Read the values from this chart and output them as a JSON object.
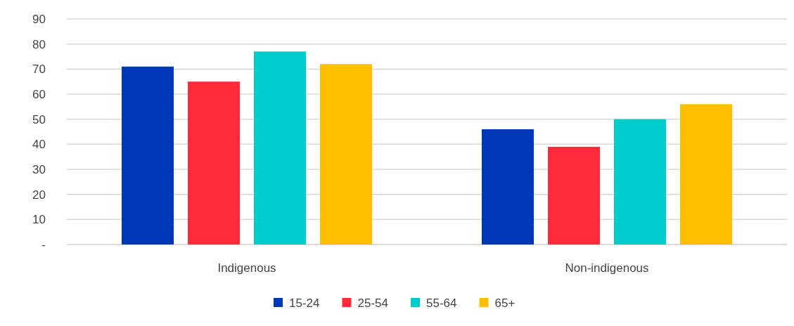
{
  "chart_data": {
    "type": "bar",
    "categories": [
      "Indigenous",
      "Non-indigenous"
    ],
    "series": [
      {
        "name": "15-24",
        "color": "#0038b8",
        "values": [
          71,
          46
        ]
      },
      {
        "name": "25-54",
        "color": "#ff2a3a",
        "values": [
          65,
          39
        ]
      },
      {
        "name": "55-64",
        "color": "#00cccc",
        "values": [
          77,
          50
        ]
      },
      {
        "name": "65+",
        "color": "#ffbf00",
        "values": [
          72,
          56
        ]
      }
    ],
    "ylim": [
      0,
      90
    ],
    "yticks": [
      {
        "value": 0,
        "label": "-"
      },
      10,
      20,
      30,
      40,
      50,
      60,
      70,
      80,
      90
    ],
    "grid": "y",
    "legend": "bottom"
  }
}
